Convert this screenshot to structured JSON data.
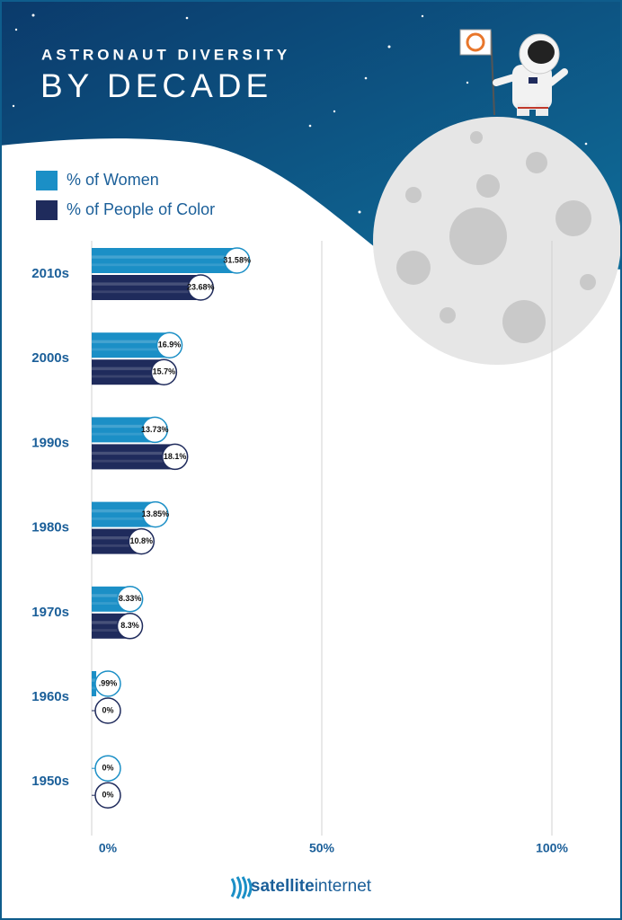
{
  "chart_data": {
    "type": "bar",
    "orientation": "horizontal",
    "title": "ASTRONAUT DIVERSITY",
    "subtitle": "BY DECADE",
    "categories": [
      "2010s",
      "2000s",
      "1990s",
      "1980s",
      "1970s",
      "1960s",
      "1950s"
    ],
    "series": [
      {
        "name": "% of Women",
        "color": "#1b8fc6",
        "values": [
          31.58,
          16.9,
          13.73,
          13.85,
          8.33,
          0.99,
          0
        ],
        "value_labels": [
          "31.58%",
          "16.9%",
          "13.73%",
          "13.85%",
          "8.33%",
          ".99%",
          "0%"
        ]
      },
      {
        "name": "% of People of Color",
        "color": "#1f2b5c",
        "values": [
          23.68,
          15.7,
          18.1,
          10.8,
          8.3,
          0,
          0
        ],
        "value_labels": [
          "23.68%",
          "15.7%",
          "18.1%",
          "10.8%",
          "8.3%",
          "0%",
          "0%"
        ]
      }
    ],
    "xlim": [
      0,
      100
    ],
    "xticks": [
      {
        "value": 0,
        "label": "0%"
      },
      {
        "value": 50,
        "label": "50%"
      },
      {
        "value": 100,
        "label": "100%"
      }
    ],
    "grid": true
  },
  "logo": {
    "bold": "satellite",
    "light": "internet"
  }
}
